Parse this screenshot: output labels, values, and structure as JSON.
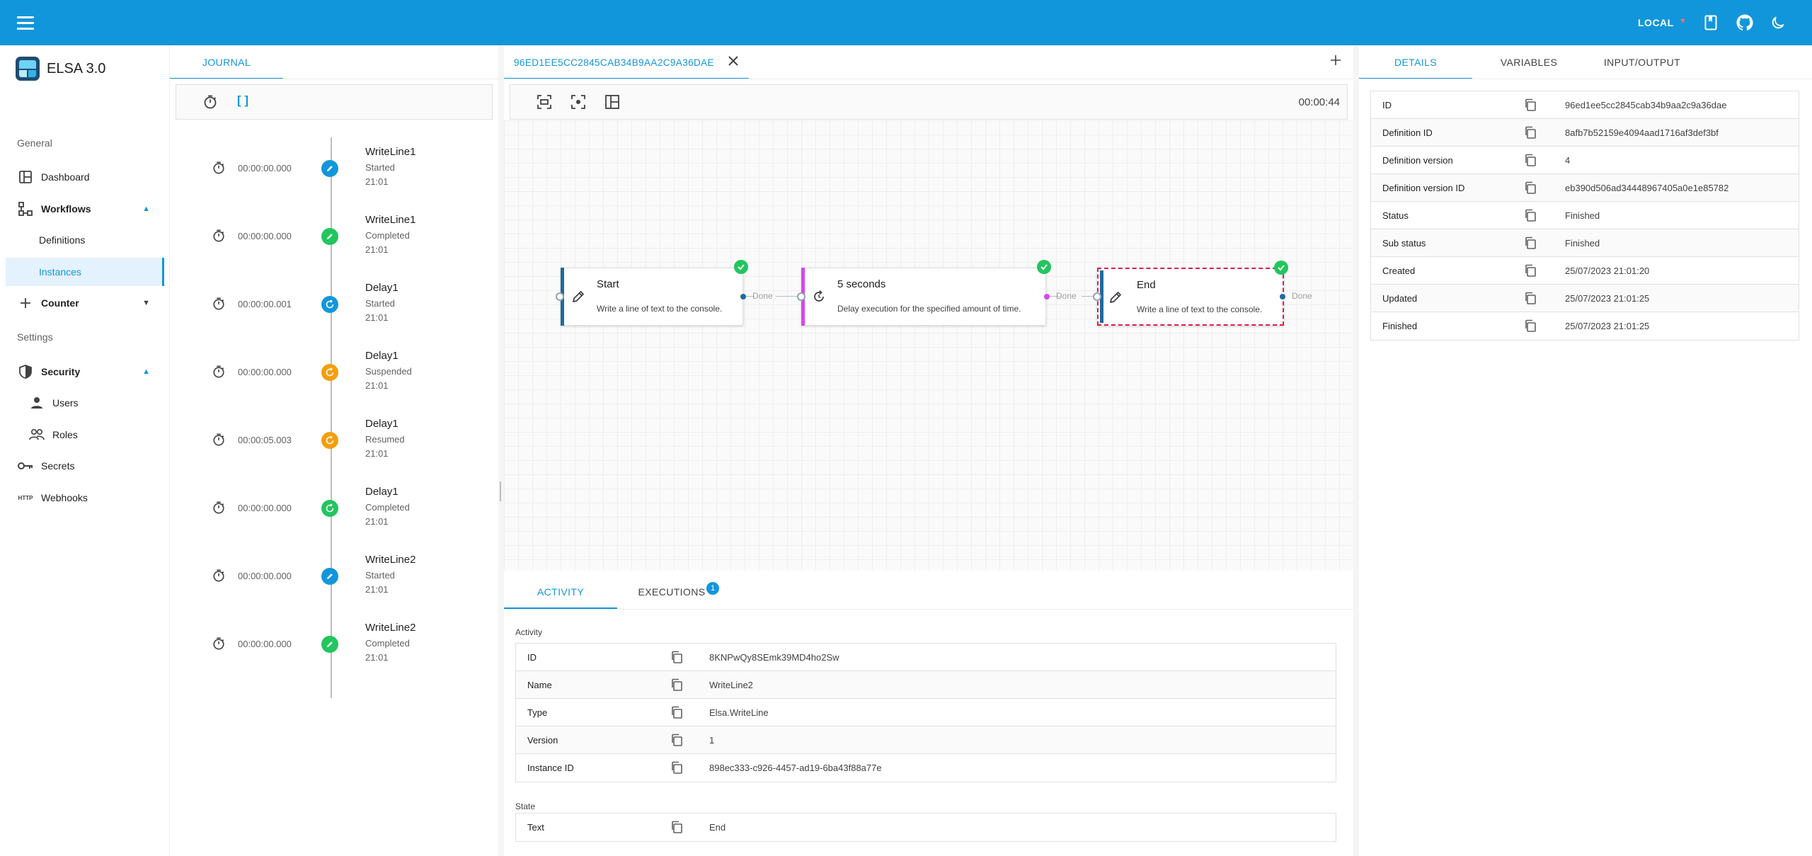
{
  "colors": {
    "primary": "#1296db",
    "success": "#22c55e",
    "warning": "#f59e0b",
    "nav_active_bg": "#e3f2fd",
    "start_bar": "#1e6b9e",
    "delay_bar": "#d946ef",
    "selected_border": "#e11d48"
  },
  "appbar": {
    "env_label": "LOCAL",
    "icons": [
      "menu-icon",
      "docs-icon",
      "github-icon",
      "dark-mode-icon"
    ]
  },
  "brand": {
    "title": "ELSA 3.0"
  },
  "nav": {
    "general_label": "General",
    "dashboard": "Dashboard",
    "workflows": "Workflows",
    "definitions": "Definitions",
    "instances": "Instances",
    "counter": "Counter",
    "settings_label": "Settings",
    "security": "Security",
    "users": "Users",
    "roles": "Roles",
    "secrets": "Secrets",
    "webhooks": "Webhooks",
    "webhooks_icon_text": "HTTP"
  },
  "journal": {
    "tab": "JOURNAL",
    "toolbar_brackets": "[ ]",
    "items": [
      {
        "duration": "00:00:00.000",
        "name": "WriteLine1",
        "status": "Started",
        "time": "21:01",
        "kind": "pencil",
        "color": "#1296db"
      },
      {
        "duration": "00:00:00.000",
        "name": "WriteLine1",
        "status": "Completed",
        "time": "21:01",
        "kind": "pencil",
        "color": "#22c55e"
      },
      {
        "duration": "00:00:00.001",
        "name": "Delay1",
        "status": "Started",
        "time": "21:01",
        "kind": "refresh",
        "color": "#1296db"
      },
      {
        "duration": "00:00:00.000",
        "name": "Delay1",
        "status": "Suspended",
        "time": "21:01",
        "kind": "refresh",
        "color": "#f59e0b"
      },
      {
        "duration": "00:00:05.003",
        "name": "Delay1",
        "status": "Resumed",
        "time": "21:01",
        "kind": "refresh",
        "color": "#f59e0b"
      },
      {
        "duration": "00:00:00.000",
        "name": "Delay1",
        "status": "Completed",
        "time": "21:01",
        "kind": "refresh",
        "color": "#22c55e"
      },
      {
        "duration": "00:00:00.000",
        "name": "WriteLine2",
        "status": "Started",
        "time": "21:01",
        "kind": "pencil",
        "color": "#1296db"
      },
      {
        "duration": "00:00:00.000",
        "name": "WriteLine2",
        "status": "Completed",
        "time": "21:01",
        "kind": "pencil",
        "color": "#22c55e"
      }
    ]
  },
  "designer": {
    "tab": "96ED1EE5CC2845CAB34B9AA2C9A36DAE",
    "elapsed": "00:00:44",
    "nodes": [
      {
        "title": "Start",
        "description": "Write a line of text to the console.",
        "outcome": "Done"
      },
      {
        "title": "5 seconds",
        "description": "Delay execution for the specified amount of time.",
        "outcome": "Done"
      },
      {
        "title": "End",
        "description": "Write a line of text to the console.",
        "outcome": "Done"
      }
    ]
  },
  "bottom": {
    "tab_activity": "ACTIVITY",
    "tab_executions": "EXECUTIONS",
    "executions_count": "1",
    "activity_title": "Activity",
    "activity_rows": [
      {
        "key": "ID",
        "value": "8KNPwQy8SEmk39MD4ho2Sw"
      },
      {
        "key": "Name",
        "value": "WriteLine2"
      },
      {
        "key": "Type",
        "value": "Elsa.WriteLine"
      },
      {
        "key": "Version",
        "value": "1"
      },
      {
        "key": "Instance ID",
        "value": "898ec333-c926-4457-ad19-6ba43f88a77e"
      }
    ],
    "state_title": "State",
    "state_rows": [
      {
        "key": "Text",
        "value": "End"
      }
    ]
  },
  "details": {
    "tabs": [
      "DETAILS",
      "VARIABLES",
      "INPUT/OUTPUT"
    ],
    "rows": [
      {
        "key": "ID",
        "value": "96ed1ee5cc2845cab34b9aa2c9a36dae"
      },
      {
        "key": "Definition ID",
        "value": "8afb7b52159e4094aad1716af3def3bf"
      },
      {
        "key": "Definition version",
        "value": "4"
      },
      {
        "key": "Definition version ID",
        "value": "eb390d506ad34448967405a0e1e85782"
      },
      {
        "key": "Status",
        "value": "Finished"
      },
      {
        "key": "Sub status",
        "value": "Finished"
      },
      {
        "key": "Created",
        "value": "25/07/2023 21:01:20"
      },
      {
        "key": "Updated",
        "value": "25/07/2023 21:01:25"
      },
      {
        "key": "Finished",
        "value": "25/07/2023 21:01:25"
      }
    ]
  }
}
